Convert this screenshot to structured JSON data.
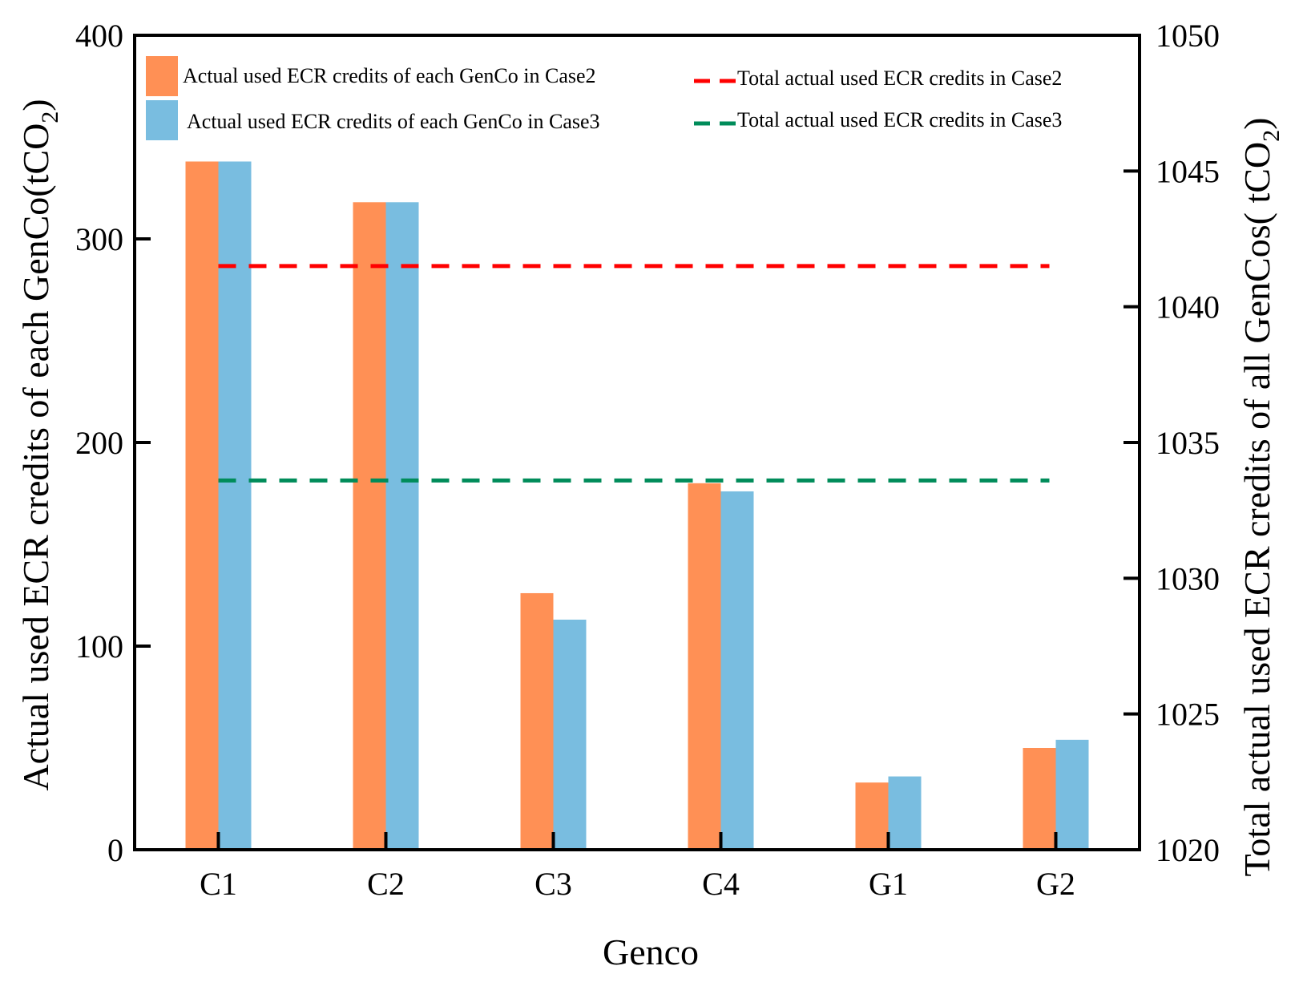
{
  "chart_data": {
    "type": "bar",
    "categories": [
      "C1",
      "C2",
      "C3",
      "C4",
      "G1",
      "G2"
    ],
    "series": [
      {
        "name": "Actual used ECR credits of each GenCo in Case2",
        "values": [
          338,
          318,
          126,
          180,
          33,
          50
        ],
        "color": "#FF9055"
      },
      {
        "name": "Actual used ECR credits of each GenCo in Case3",
        "values": [
          338,
          318,
          113,
          176,
          36,
          54
        ],
        "color": "#79BDE0"
      }
    ],
    "lines": [
      {
        "name": "Total actual used ECR credits in Case2",
        "value": 1041.5,
        "axis": "right",
        "style": "dashed",
        "color": "#FF0000"
      },
      {
        "name": "Total actual used ECR credits  in Case3",
        "value": 1033.6,
        "axis": "right",
        "style": "dashed",
        "color": "#008C5A"
      }
    ],
    "xlabel": "Genco",
    "ylabel": {
      "main": "Actual used ECR credits of each GenCo(tCO",
      "sub": "2",
      "end": ")"
    },
    "y2label": {
      "main": "Total actual used ECR credits of all GenCos( tCO",
      "sub": "2",
      "end": ")"
    },
    "ylim": [
      0,
      400
    ],
    "yticks": [
      "0",
      "100",
      "200",
      "300",
      "400"
    ],
    "y2lim": [
      1020,
      1050
    ],
    "y2ticks": [
      "1020",
      "1025",
      "1030",
      "1035",
      "1040",
      "1045",
      "1050"
    ],
    "legend_position": "top"
  }
}
